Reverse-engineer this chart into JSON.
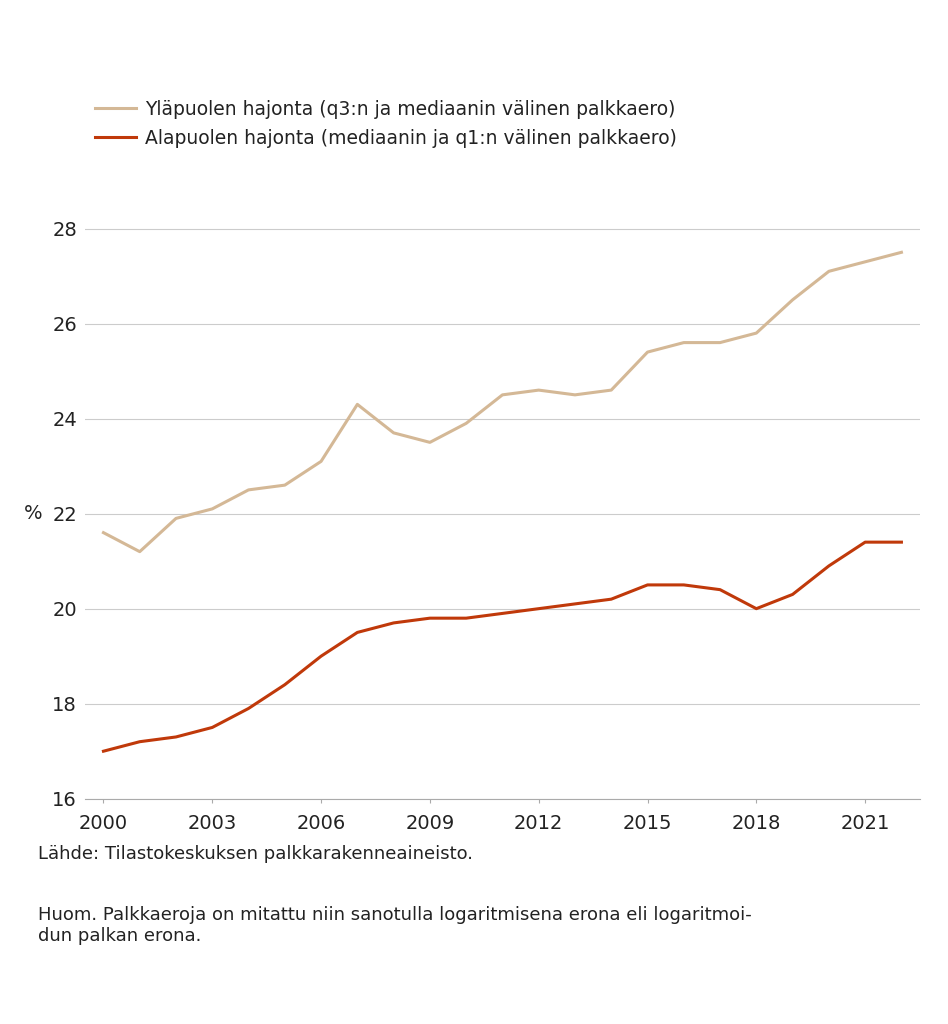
{
  "years": [
    2000,
    2001,
    2002,
    2003,
    2004,
    2005,
    2006,
    2007,
    2008,
    2009,
    2010,
    2011,
    2012,
    2013,
    2014,
    2015,
    2016,
    2017,
    2018,
    2019,
    2020,
    2021,
    2022
  ],
  "upper_dispersion": [
    21.6,
    21.2,
    21.9,
    22.1,
    22.5,
    22.6,
    23.1,
    24.3,
    23.7,
    23.5,
    23.9,
    24.5,
    24.6,
    24.5,
    24.6,
    25.4,
    25.6,
    25.6,
    25.8,
    26.5,
    27.1,
    27.3,
    27.5
  ],
  "lower_dispersion": [
    17.0,
    17.2,
    17.3,
    17.5,
    17.9,
    18.4,
    19.0,
    19.5,
    19.7,
    19.8,
    19.8,
    19.9,
    20.0,
    20.1,
    20.2,
    20.5,
    20.5,
    20.4,
    20.0,
    20.3,
    20.9,
    21.4,
    21.4
  ],
  "upper_color": "#d4b896",
  "lower_color": "#c0390a",
  "upper_label": "Yläpuolen hajonta (q3:n ja mediaanin välinen palkkaero)",
  "lower_label": "Alapuolen hajonta (mediaanin ja q1:n välinen palkkaero)",
  "ylabel": "%",
  "ylim": [
    16,
    28.5
  ],
  "yticks": [
    16,
    18,
    20,
    22,
    24,
    26,
    28
  ],
  "xticks": [
    2000,
    2003,
    2006,
    2009,
    2012,
    2015,
    2018,
    2021
  ],
  "background_color": "#ffffff",
  "footnote1": "Lähde: Tilastokeskuksen palkkarakenneaineisto.",
  "footnote2": "Huom. Palkkaeroja on mitattu niin sanotulla logaritmisena erona eli logaritmoi-\ndun palkan erona.",
  "line_width": 2.2
}
